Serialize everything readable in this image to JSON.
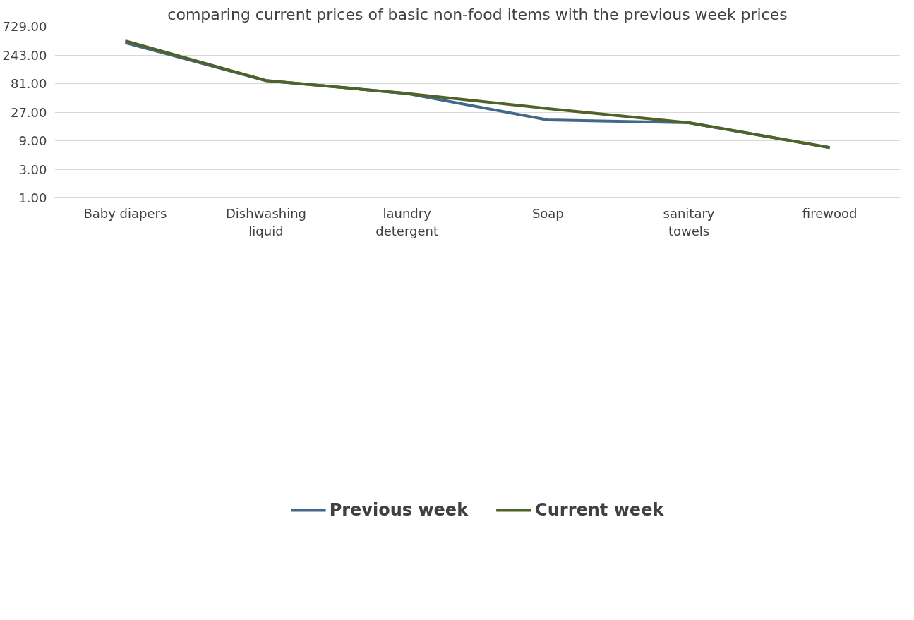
{
  "chart_data": {
    "type": "line",
    "title": "comparing current prices of basic non-food items with the previous week prices",
    "categories": [
      "Baby diapers",
      "Dishwashing liquid",
      "laundry detergent",
      "Soap",
      "sanitary towels",
      "firewood"
    ],
    "series": [
      {
        "name": "Previous week",
        "color": "#44688a",
        "values": [
          390,
          91,
          55.5,
          20,
          18,
          6.9
        ]
      },
      {
        "name": "Current week",
        "color": "#4f6228",
        "values": [
          419,
          91,
          55.5,
          31,
          18,
          6.9
        ]
      }
    ],
    "log": "y",
    "ylim": [
      1,
      729
    ],
    "yticks": [
      {
        "value": 1,
        "label": "1.00"
      },
      {
        "value": 3,
        "label": "3.00"
      },
      {
        "value": 9,
        "label": "9.00"
      },
      {
        "value": 27,
        "label": "27.00"
      },
      {
        "value": 81,
        "label": "81.00"
      },
      {
        "value": 243,
        "label": "243.00"
      },
      {
        "value": 729,
        "label": "729.00"
      }
    ],
    "grid": "y",
    "legend": "bottom",
    "marker": "none",
    "line_style": "solid"
  }
}
